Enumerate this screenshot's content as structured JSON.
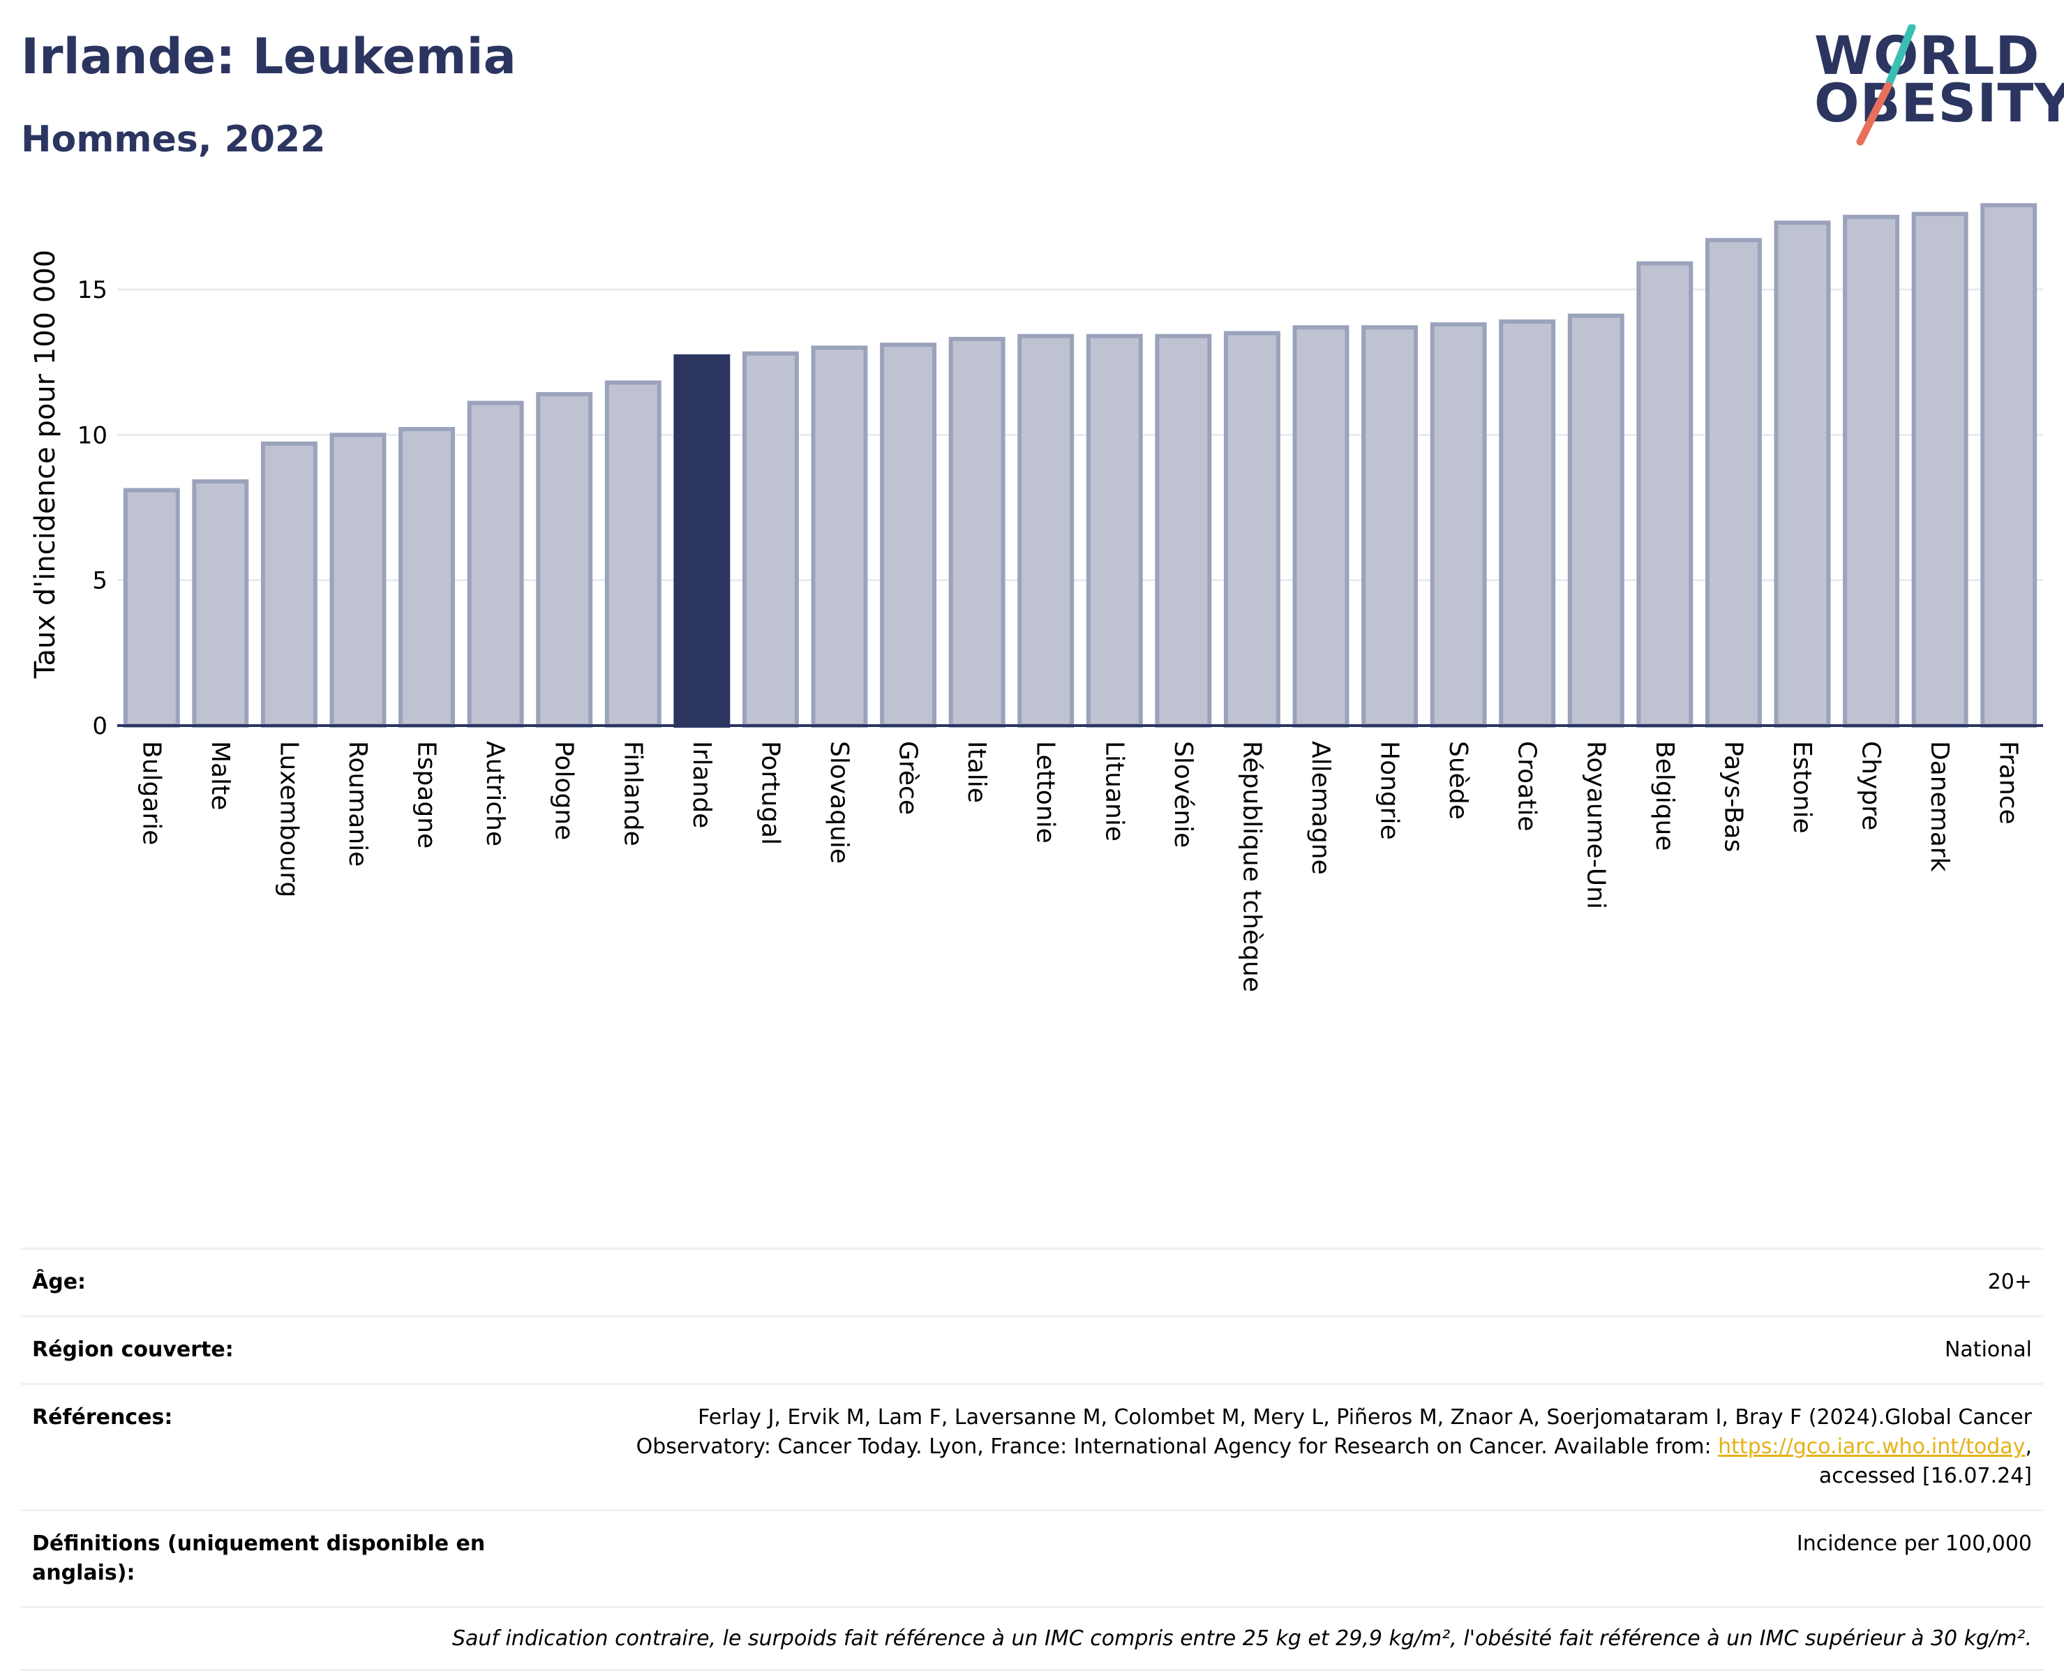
{
  "header": {
    "title": "Irlande: Leukemia",
    "subtitle": "Hommes, 2022",
    "logo_line1": "WORLD",
    "logo_line2": "OBESITY"
  },
  "colors": {
    "bar": "#bfc3d1",
    "bar_border": "#9ba2bb",
    "highlight": "#2b3560",
    "text": "#2b3560",
    "logo_slash_top": "#3bbfb3",
    "logo_slash_bottom": "#e8705a"
  },
  "chart_data": {
    "type": "bar",
    "ylabel": "Taux d'incidence pour 100 000",
    "ylim": [
      0,
      18
    ],
    "yticks": [
      0,
      5,
      10,
      15
    ],
    "grid": true,
    "highlight": "Irlande",
    "categories": [
      "Bulgarie",
      "Malte",
      "Luxembourg",
      "Roumanie",
      "Espagne",
      "Autriche",
      "Pologne",
      "Finlande",
      "Irlande",
      "Portugal",
      "Slovaquie",
      "Grèce",
      "Italie",
      "Lettonie",
      "Lituanie",
      "Slovénie",
      "République tchèque",
      "Allemagne",
      "Hongrie",
      "Suède",
      "Croatie",
      "Royaume-Uni",
      "Belgique",
      "Pays-Bas",
      "Estonie",
      "Chypre",
      "Danemark",
      "France"
    ],
    "values": [
      8.1,
      8.4,
      9.7,
      10.0,
      10.2,
      11.1,
      11.4,
      11.8,
      12.7,
      12.8,
      13.0,
      13.1,
      13.3,
      13.4,
      13.4,
      13.4,
      13.5,
      13.7,
      13.7,
      13.8,
      13.9,
      14.1,
      15.9,
      16.7,
      17.3,
      17.5,
      17.6,
      17.9
    ]
  },
  "meta": {
    "age_label": "Âge:",
    "age_value": "20+",
    "region_label": "Région couverte:",
    "region_value": "National",
    "refs_label": "Références:",
    "refs_text_1": "Ferlay J, Ervik M, Lam F, Laversanne M, Colombet M, Mery L, Piñeros M, Znaor A, Soerjomataram I, Bray F (2024).Global Cancer Observatory: Cancer Today. Lyon, France: International Agency for Research on Cancer. Available from: ",
    "refs_link": "https://gco.iarc.who.int/today",
    "refs_text_2": ", accessed [16.07.24]",
    "defs_label": "Définitions (uniquement disponible en anglais):",
    "defs_value": "Incidence per 100,000",
    "note": "Sauf indication contraire, le surpoids fait référence à un IMC compris entre 25 kg et 29,9 kg/m², l'obésité fait référence à un IMC supérieur à 30 kg/m²."
  }
}
